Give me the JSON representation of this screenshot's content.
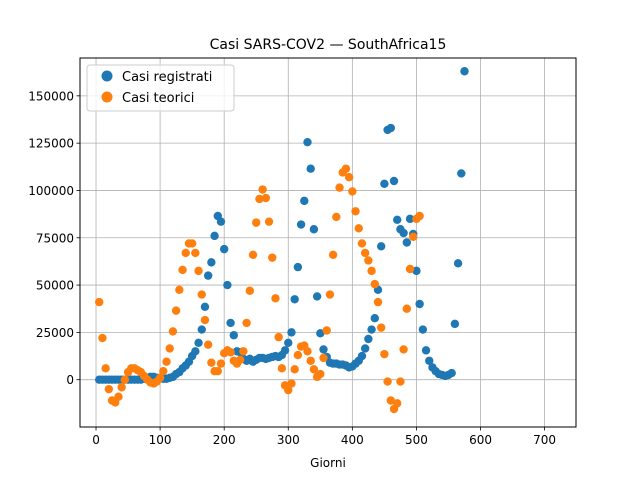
{
  "chart_data": {
    "type": "scatter",
    "title": "Casi SARS-COV2 — SouthAfrica15",
    "xlabel": "Giorni",
    "ylabel": "",
    "xlim": [
      -25,
      749
    ],
    "ylim": [
      -25000,
      170000
    ],
    "xticks": [
      0,
      100,
      200,
      300,
      400,
      500,
      600,
      700
    ],
    "yticks": [
      0,
      25000,
      50000,
      75000,
      100000,
      125000,
      150000
    ],
    "grid": true,
    "legend": "top-left",
    "series": [
      {
        "name": "Casi registrati",
        "color": "#1f77b4",
        "points": [
          [
            5,
            0
          ],
          [
            10,
            0
          ],
          [
            15,
            0
          ],
          [
            20,
            0
          ],
          [
            25,
            0
          ],
          [
            30,
            0
          ],
          [
            35,
            0
          ],
          [
            40,
            0
          ],
          [
            45,
            0
          ],
          [
            50,
            0
          ],
          [
            55,
            0
          ],
          [
            60,
            0
          ],
          [
            65,
            0
          ],
          [
            70,
            0
          ],
          [
            75,
            500
          ],
          [
            80,
            1000
          ],
          [
            85,
            1500
          ],
          [
            90,
            1500
          ],
          [
            95,
            1000
          ],
          [
            100,
            1000
          ],
          [
            105,
            500
          ],
          [
            110,
            500
          ],
          [
            115,
            1000
          ],
          [
            120,
            1500
          ],
          [
            125,
            3000
          ],
          [
            130,
            4000
          ],
          [
            135,
            6000
          ],
          [
            140,
            7500
          ],
          [
            145,
            9500
          ],
          [
            150,
            12500
          ],
          [
            155,
            15000
          ],
          [
            160,
            19500
          ],
          [
            165,
            26500
          ],
          [
            170,
            38500
          ],
          [
            175,
            55000
          ],
          [
            180,
            62000
          ],
          [
            185,
            76000
          ],
          [
            190,
            86500
          ],
          [
            195,
            83500
          ],
          [
            200,
            69000
          ],
          [
            205,
            50000
          ],
          [
            210,
            30000
          ],
          [
            215,
            23500
          ],
          [
            220,
            15000
          ],
          [
            225,
            14500
          ],
          [
            230,
            11000
          ],
          [
            235,
            10000
          ],
          [
            240,
            11000
          ],
          [
            245,
            9500
          ],
          [
            250,
            10500
          ],
          [
            255,
            11500
          ],
          [
            260,
            11500
          ],
          [
            265,
            11000
          ],
          [
            270,
            11500
          ],
          [
            275,
            12000
          ],
          [
            280,
            12500
          ],
          [
            285,
            12000
          ],
          [
            290,
            13000
          ],
          [
            295,
            15500
          ],
          [
            300,
            19500
          ],
          [
            305,
            25000
          ],
          [
            310,
            42500
          ],
          [
            315,
            59500
          ],
          [
            320,
            82000
          ],
          [
            325,
            94500
          ],
          [
            330,
            125500
          ],
          [
            335,
            111500
          ],
          [
            340,
            79500
          ],
          [
            345,
            44000
          ],
          [
            350,
            24500
          ],
          [
            355,
            16000
          ],
          [
            360,
            12000
          ],
          [
            365,
            9000
          ],
          [
            370,
            8500
          ],
          [
            375,
            8500
          ],
          [
            380,
            8000
          ],
          [
            385,
            8000
          ],
          [
            390,
            7500
          ],
          [
            395,
            6500
          ],
          [
            400,
            7000
          ],
          [
            405,
            8500
          ],
          [
            410,
            10000
          ],
          [
            415,
            12500
          ],
          [
            420,
            16500
          ],
          [
            425,
            21500
          ],
          [
            430,
            26500
          ],
          [
            435,
            32500
          ],
          [
            440,
            47500
          ],
          [
            445,
            70500
          ],
          [
            450,
            103500
          ],
          [
            455,
            132000
          ],
          [
            460,
            133000
          ],
          [
            465,
            105000
          ],
          [
            470,
            84500
          ],
          [
            475,
            79500
          ],
          [
            480,
            77500
          ],
          [
            485,
            72500
          ],
          [
            490,
            85000
          ],
          [
            495,
            77000
          ],
          [
            500,
            57500
          ],
          [
            505,
            40000
          ],
          [
            510,
            26500
          ],
          [
            515,
            15500
          ],
          [
            520,
            10000
          ],
          [
            525,
            6500
          ],
          [
            530,
            4500
          ],
          [
            535,
            3000
          ],
          [
            540,
            2500
          ],
          [
            545,
            2000
          ],
          [
            550,
            2500
          ],
          [
            555,
            3500
          ],
          [
            560,
            29500
          ],
          [
            565,
            61500
          ],
          [
            570,
            109000
          ],
          [
            575,
            163000
          ]
        ]
      },
      {
        "name": "Casi teorici",
        "color": "#ff7f0e",
        "points": [
          [
            5,
            41000
          ],
          [
            10,
            22000
          ],
          [
            15,
            6000
          ],
          [
            20,
            -5000
          ],
          [
            25,
            -11000
          ],
          [
            30,
            -12000
          ],
          [
            35,
            -9000
          ],
          [
            40,
            -4000
          ],
          [
            45,
            0
          ],
          [
            50,
            4000
          ],
          [
            55,
            6000
          ],
          [
            60,
            6000
          ],
          [
            65,
            5000
          ],
          [
            70,
            4000
          ],
          [
            75,
            2000
          ],
          [
            80,
            0
          ],
          [
            85,
            -1500
          ],
          [
            90,
            -2000
          ],
          [
            95,
            -1000
          ],
          [
            100,
            1000
          ],
          [
            105,
            4500
          ],
          [
            110,
            9500
          ],
          [
            115,
            16500
          ],
          [
            120,
            25500
          ],
          [
            125,
            36500
          ],
          [
            130,
            47500
          ],
          [
            135,
            58000
          ],
          [
            140,
            67000
          ],
          [
            145,
            72000
          ],
          [
            150,
            72000
          ],
          [
            155,
            67000
          ],
          [
            160,
            57500
          ],
          [
            165,
            45000
          ],
          [
            170,
            31500
          ],
          [
            175,
            18500
          ],
          [
            180,
            9000
          ],
          [
            185,
            4500
          ],
          [
            190,
            4500
          ],
          [
            195,
            8500
          ],
          [
            200,
            14000
          ],
          [
            205,
            15500
          ],
          [
            210,
            14500
          ],
          [
            215,
            10000
          ],
          [
            220,
            8500
          ],
          [
            225,
            10500
          ],
          [
            230,
            15000
          ],
          [
            235,
            30000
          ],
          [
            240,
            47000
          ],
          [
            245,
            66000
          ],
          [
            250,
            83000
          ],
          [
            255,
            95500
          ],
          [
            260,
            100500
          ],
          [
            265,
            96000
          ],
          [
            270,
            83500
          ],
          [
            275,
            64500
          ],
          [
            280,
            43000
          ],
          [
            285,
            22500
          ],
          [
            290,
            6000
          ],
          [
            295,
            -3000
          ],
          [
            300,
            -5500
          ],
          [
            305,
            -2000
          ],
          [
            310,
            5500
          ],
          [
            315,
            13000
          ],
          [
            320,
            17500
          ],
          [
            325,
            18000
          ],
          [
            330,
            15000
          ],
          [
            335,
            10000
          ],
          [
            340,
            5500
          ],
          [
            345,
            1500
          ],
          [
            350,
            3000
          ],
          [
            355,
            11500
          ],
          [
            360,
            26000
          ],
          [
            365,
            45000
          ],
          [
            370,
            66000
          ],
          [
            375,
            86000
          ],
          [
            380,
            101500
          ],
          [
            385,
            109500
          ],
          [
            390,
            111500
          ],
          [
            395,
            107000
          ],
          [
            400,
            99500
          ],
          [
            405,
            89000
          ],
          [
            410,
            80000
          ],
          [
            415,
            72000
          ],
          [
            420,
            67000
          ],
          [
            425,
            63000
          ],
          [
            430,
            57500
          ],
          [
            435,
            50500
          ],
          [
            440,
            41000
          ],
          [
            445,
            27500
          ],
          [
            450,
            13500
          ],
          [
            455,
            -1000
          ],
          [
            460,
            -11000
          ],
          [
            465,
            -15500
          ],
          [
            470,
            -12500
          ],
          [
            475,
            -1000
          ],
          [
            480,
            16000
          ],
          [
            485,
            37500
          ],
          [
            490,
            58500
          ],
          [
            495,
            75500
          ],
          [
            500,
            85000
          ],
          [
            505,
            86500
          ]
        ]
      }
    ]
  }
}
